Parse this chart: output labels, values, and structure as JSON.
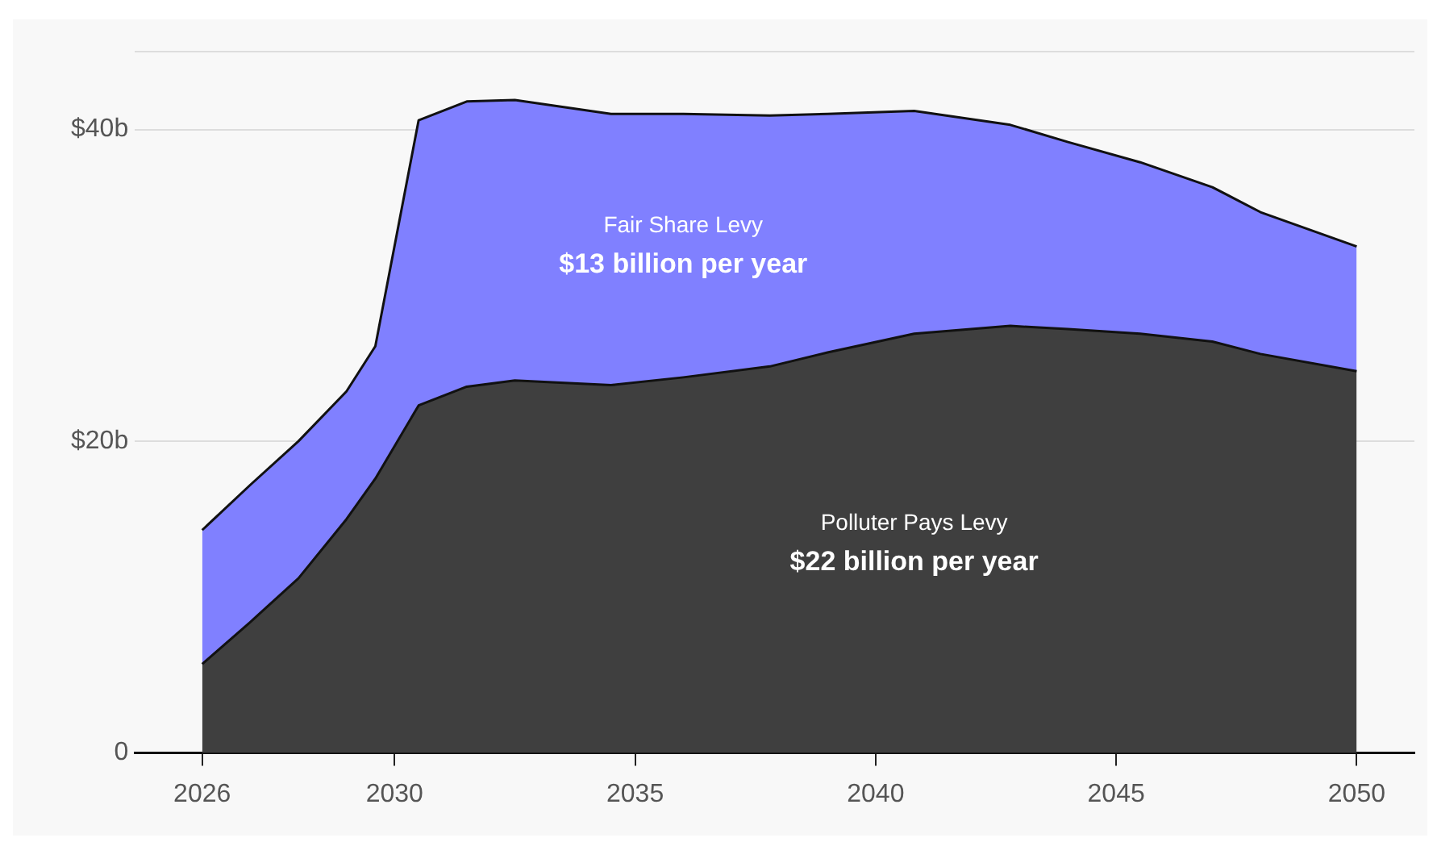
{
  "chart_data": {
    "type": "area",
    "stacked": true,
    "x": [
      2026,
      2027,
      2028,
      2029,
      2029.6,
      2030.5,
      2031.5,
      2032.5,
      2034.5,
      2036,
      2037.8,
      2039,
      2040.8,
      2042.8,
      2044,
      2045.5,
      2047,
      2048,
      2050
    ],
    "series": [
      {
        "name": "Polluter Pays Levy",
        "color": "#3f3f3f",
        "values": [
          5.7,
          8.4,
          11.2,
          15,
          17.6,
          22.3,
          23.5,
          23.9,
          23.6,
          24.1,
          24.8,
          25.7,
          26.9,
          27.4,
          27.2,
          26.9,
          26.4,
          25.6,
          24.5
        ]
      },
      {
        "name": "Fair Share Levy",
        "color": "#8080ff",
        "values": [
          8.6,
          8.8,
          8.8,
          8.2,
          8.5,
          18.3,
          18.3,
          18,
          17.4,
          16.9,
          16.1,
          15.3,
          14.3,
          12.9,
          12,
          11,
          9.9,
          9.1,
          8.0
        ]
      }
    ],
    "annotations": [
      "$22 billion per year",
      "$13 billion per year"
    ],
    "xlim": [
      2024.6,
      2051.2
    ],
    "xticks": [
      2026,
      2030,
      2035,
      2040,
      2045,
      2050
    ],
    "ylim": [
      0,
      45
    ],
    "yticks": [
      {
        "value": 0,
        "label": "0"
      },
      {
        "value": 20,
        "label": "$20b"
      },
      {
        "value": 40,
        "label": "$40b"
      },
      {
        "value": 45,
        "label": null
      }
    ],
    "grid": "y",
    "legend": false
  }
}
